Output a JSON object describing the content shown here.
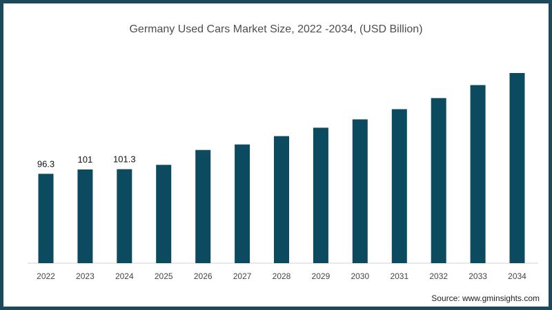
{
  "colors": {
    "bar": "#0c4a60",
    "frame": "#1c4a5c",
    "axis": "#d0d0d0"
  },
  "chart_data": {
    "type": "bar",
    "title": "Germany Used Cars Market Size, 2022 -2034, (USD Billion)",
    "source": "Source: www.gminsights.com",
    "categories": [
      "2022",
      "2023",
      "2024",
      "2025",
      "2026",
      "2027",
      "2028",
      "2029",
      "2030",
      "2031",
      "2032",
      "2033",
      "2034"
    ],
    "values": [
      96.3,
      101,
      101.3,
      106,
      122,
      128,
      137,
      146,
      155,
      166,
      178,
      192,
      205
    ],
    "data_labels": [
      "96.3",
      "101",
      "101.3",
      null,
      null,
      null,
      null,
      null,
      null,
      null,
      null,
      null,
      null
    ],
    "ylim": [
      0,
      210
    ],
    "grid": false,
    "legend": "none"
  }
}
